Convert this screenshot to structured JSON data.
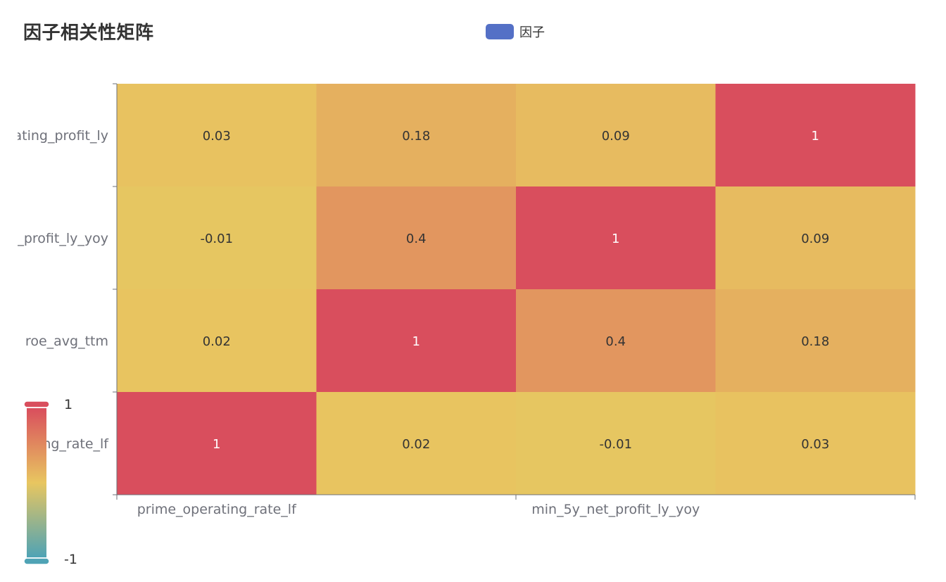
{
  "title": "因子相关性矩阵",
  "legend": {
    "label": "因子",
    "color": "#5470c6"
  },
  "colors": {
    "scale_low": "#4fa3b5",
    "scale_mid": "#e8c660",
    "scale_high": "#d94e5d",
    "axis_line": "#6e7079",
    "label_text": "#6e7079",
    "cell_text_dark": "#333333",
    "cell_text_light": "#ffffff"
  },
  "chart_data": {
    "type": "heatmap",
    "x_tick_labels": [
      "prime_operating_rate_lf",
      "min_5y_net_profit_ly_yoy"
    ],
    "y_tick_labels": [
      "ating_profit_ly",
      "t_profit_ly_yoy",
      "roe_avg_ttm",
      "ng_rate_lf"
    ],
    "values": [
      [
        "0.03",
        "0.18",
        "0.09",
        "1"
      ],
      [
        "-0.01",
        "0.4",
        "1",
        "0.09"
      ],
      [
        "0.02",
        "1",
        "0.4",
        "0.18"
      ],
      [
        "1",
        "0.02",
        "-0.01",
        "0.03"
      ]
    ],
    "visual_map": {
      "min": -1,
      "max": 1,
      "max_label": "1",
      "min_label": "-1"
    }
  }
}
